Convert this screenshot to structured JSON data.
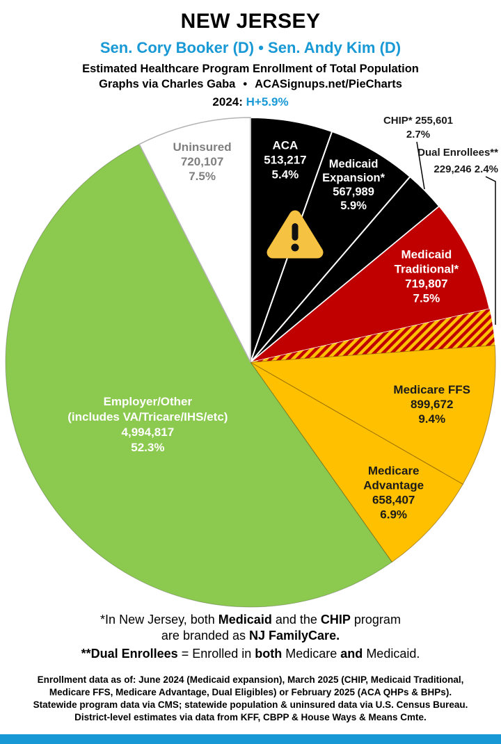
{
  "header": {
    "state": "NEW JERSEY",
    "senators": "Sen. Cory Booker (D) • Sen. Andy Kim (D)",
    "subtitle": "Estimated Healthcare Program Enrollment of Total Population",
    "credit_author": "Graphs via Charles Gaba",
    "credit_sep": "•",
    "credit_site": "ACASignups.net/PieCharts",
    "year_label": "2024:",
    "year_value": "H+5.9%"
  },
  "colors": {
    "blue": "#1899D6",
    "black": "#000000",
    "dark_red": "#C00000",
    "gold": "#FFC000",
    "green": "#8CC94F",
    "gray_label": "#7F7F7F",
    "warning_yellow": "#F5C242"
  },
  "icons": {
    "warning": "⚠"
  },
  "chart_data": {
    "type": "pie",
    "title": "Estimated Healthcare Program Enrollment of Total Population",
    "start": "top",
    "direction": "clockwise",
    "total_pct": 100,
    "hatch_colors": [
      "#FFC000",
      "#C00000"
    ],
    "slices": [
      {
        "name": "ACA",
        "value": 513217,
        "pct": 5.4,
        "color": "#000000",
        "label_color": "#FFFFFF",
        "label_placement": "inside",
        "label_lines": [
          "ACA",
          "513,217",
          "5.4%"
        ]
      },
      {
        "name": "Medicaid Expansion*",
        "value": 567989,
        "pct": 5.9,
        "color": "#000000",
        "label_color": "#FFFFFF",
        "label_placement": "inside",
        "label_lines": [
          "Medicaid",
          "Expansion*",
          "567,989",
          "5.9%"
        ]
      },
      {
        "name": "CHIP*",
        "value": 255601,
        "pct": 2.7,
        "color": "#000000",
        "label_color": "#1A1A1A",
        "label_placement": "outside",
        "label_lines": [
          "CHIP* 255,601",
          "2.7%"
        ]
      },
      {
        "name": "Medicaid Traditional*",
        "value": 719807,
        "pct": 7.5,
        "color": "#C00000",
        "label_color": "#FFFFFF",
        "label_placement": "inside",
        "label_lines": [
          "Medicaid",
          "Traditional*",
          "719,807",
          "7.5%"
        ]
      },
      {
        "name": "Dual Enrollees**",
        "value": 229246,
        "pct": 2.4,
        "color": "hatch",
        "label_color": "#1A1A1A",
        "label_placement": "outside",
        "label_lines": [
          "Dual Enrollees**",
          "229,246 2.4%"
        ]
      },
      {
        "name": "Medicare FFS",
        "value": 899672,
        "pct": 9.4,
        "color": "#FFC000",
        "label_color": "#1A1A1A",
        "label_placement": "inside",
        "label_lines": [
          "Medicare FFS",
          "899,672",
          "9.4%"
        ]
      },
      {
        "name": "Medicare Advantage",
        "value": 658407,
        "pct": 6.9,
        "color": "#FFC000",
        "label_color": "#1A1A1A",
        "label_placement": "inside",
        "label_lines": [
          "Medicare",
          "Advantage",
          "658,407",
          "6.9%"
        ]
      },
      {
        "name": "Employer/Other",
        "value": 4994817,
        "pct": 52.3,
        "color": "#8CC94F",
        "label_color": "#FFFFFF",
        "label_placement": "inside",
        "label_lines": [
          "Employer/Other",
          "(includes VA/Tricare/IHS/etc)",
          "4,994,817",
          "52.3%"
        ]
      },
      {
        "name": "Uninsured",
        "value": 720107,
        "pct": 7.5,
        "color": "#FFFFFF",
        "label_color": "#7F7F7F",
        "label_placement": "inside",
        "label_lines": [
          "Uninsured",
          "720,107",
          "7.5%"
        ]
      }
    ]
  },
  "footnotes": {
    "f1a": [
      {
        "t": "*In New Jersey, both ",
        "b": false
      },
      {
        "t": "Medicaid",
        "b": true
      },
      {
        "t": " and the ",
        "b": false
      },
      {
        "t": "CHIP",
        "b": true
      },
      {
        "t": " program",
        "b": false
      }
    ],
    "f1b": [
      {
        "t": "are branded as ",
        "b": false
      },
      {
        "t": "NJ FamilyCare.",
        "b": true
      }
    ],
    "f2": [
      {
        "t": "**Dual Enrollees",
        "b": true
      },
      {
        "t": " = Enrolled in ",
        "b": false
      },
      {
        "t": "both",
        "b": true
      },
      {
        "t": " Medicare ",
        "b": false
      },
      {
        "t": "and",
        "b": true
      },
      {
        "t": " Medicaid.",
        "b": false
      }
    ]
  },
  "sources": {
    "lines": [
      "Enrollment data as of: June 2024 (Medicaid expansion), March 2025 (CHIP, Medicaid Traditional,",
      "Medicare FFS, Medicare Advantage, Dual Eligibles) or February 2025 (ACA QHPs & BHPs).",
      "Statewide program data via CMS; statewide population & uninsured data via U.S. Census Bureau.",
      "District-level estimates via data from KFF, CBPP & House Ways & Means Cmte."
    ]
  }
}
